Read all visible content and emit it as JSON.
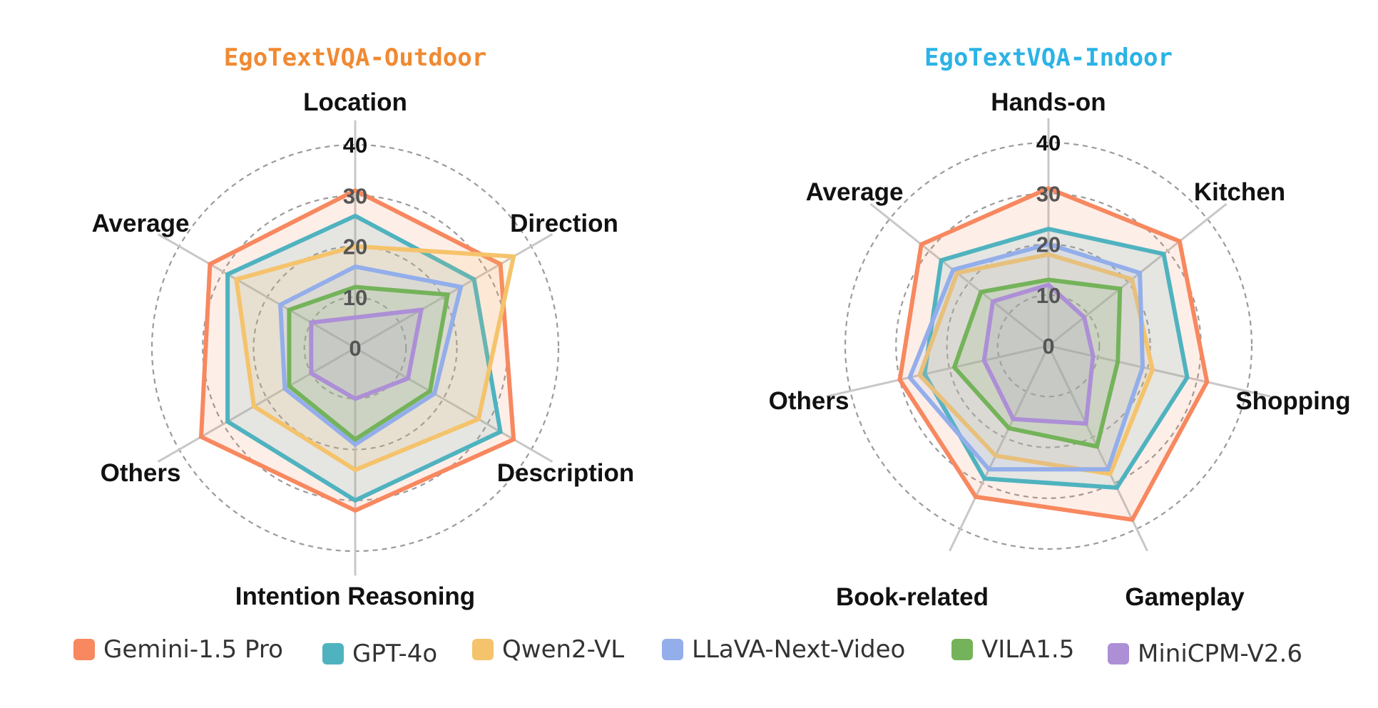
{
  "series": [
    {
      "name": "Gemini-1.5 Pro",
      "color": "#F7885F"
    },
    {
      "name": "GPT-4o",
      "color": "#4FB3BF"
    },
    {
      "name": "Qwen2-VL",
      "color": "#F5C36B"
    },
    {
      "name": "LLaVA-Next-Video",
      "color": "#93AEEA"
    },
    {
      "name": "VILA1.5",
      "color": "#74B35A"
    },
    {
      "name": "MiniCPM-V2.6",
      "color": "#AD8FD6"
    }
  ],
  "chart_data": [
    {
      "type": "radar",
      "title": "EgoTextVQA-Outdoor",
      "title_color": "#F08A33",
      "axes": [
        "Location",
        "Direction",
        "Description",
        "Intention Reasoning",
        "Others",
        "Average"
      ],
      "ticks": [
        "0",
        "10",
        "20",
        "30",
        "40"
      ],
      "rlim": [
        0,
        40
      ],
      "series": [
        {
          "name": "Gemini-1.5 Pro",
          "values": [
            31,
            33,
            36,
            32,
            35,
            33
          ]
        },
        {
          "name": "GPT-4o",
          "values": [
            26,
            27,
            33,
            30,
            29,
            29
          ]
        },
        {
          "name": "Qwen2-VL",
          "values": [
            20,
            36,
            28,
            24,
            23,
            27
          ]
        },
        {
          "name": "LLaVA-Next-Video",
          "values": [
            16,
            24,
            18,
            19,
            16,
            17
          ]
        },
        {
          "name": "VILA1.5",
          "values": [
            12,
            21,
            17,
            18,
            15,
            15
          ]
        },
        {
          "name": "MiniCPM-V2.6",
          "values": [
            6,
            15,
            12,
            10,
            10,
            10
          ]
        }
      ]
    },
    {
      "type": "radar",
      "title": "EgoTextVQA-Indoor",
      "title_color": "#2BB3E6",
      "axes": [
        "Hands-on",
        "Kitchen",
        "Shopping",
        "Gameplay",
        "Book-related",
        "Others",
        "Average"
      ],
      "ticks": [
        "0",
        "10",
        "20",
        "30",
        "40"
      ],
      "rlim": [
        0,
        40
      ],
      "series": [
        {
          "name": "Gemini-1.5 Pro",
          "values": [
            31,
            33,
            32,
            38,
            33,
            30,
            32
          ]
        },
        {
          "name": "GPT-4o",
          "values": [
            23,
            29,
            28,
            31,
            29,
            25,
            27
          ]
        },
        {
          "name": "Qwen2-VL",
          "values": [
            18,
            21,
            21,
            28,
            24,
            26,
            23
          ]
        },
        {
          "name": "LLaVA-Next-Video",
          "values": [
            20,
            23,
            19,
            27,
            27,
            28,
            24
          ]
        },
        {
          "name": "VILA1.5",
          "values": [
            13,
            18,
            14,
            22,
            18,
            19,
            17
          ]
        },
        {
          "name": "MiniCPM-V2.6",
          "values": [
            12,
            9,
            9,
            17,
            16,
            13,
            14
          ]
        }
      ]
    }
  ]
}
